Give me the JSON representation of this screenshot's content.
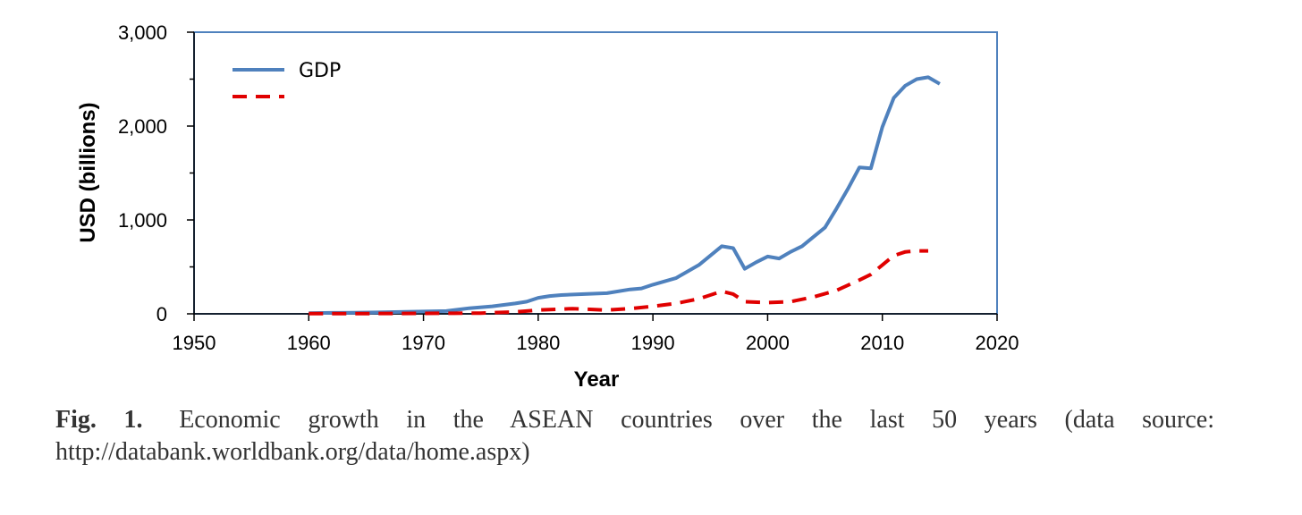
{
  "chart_data": {
    "type": "line",
    "title": "",
    "xlabel": "Year",
    "ylabel": "USD (billions)",
    "xlim": [
      1950,
      2020
    ],
    "ylim": [
      0,
      3000
    ],
    "x_ticks": [
      1950,
      1960,
      1970,
      1980,
      1990,
      2000,
      2010,
      2020
    ],
    "y_ticks": [
      0,
      1000,
      2000,
      3000
    ],
    "x_tick_labels": [
      "1950",
      "1960",
      "1970",
      "1980",
      "1990",
      "2000",
      "2010",
      "2020"
    ],
    "y_tick_labels": [
      "0",
      "1,000",
      "2,000",
      "3,000"
    ],
    "legend_position": "top-left",
    "grid": false,
    "series": [
      {
        "name": "GDP",
        "color": "#4f81bd",
        "style": "solid",
        "x": [
          1960,
          1962,
          1964,
          1966,
          1968,
          1970,
          1972,
          1974,
          1976,
          1978,
          1979,
          1980,
          1981,
          1982,
          1984,
          1986,
          1988,
          1989,
          1990,
          1992,
          1994,
          1996,
          1997,
          1998,
          1999,
          2000,
          2001,
          2002,
          2003,
          2004,
          2005,
          2006,
          2007,
          2008,
          2009,
          2010,
          2011,
          2012,
          2013,
          2014,
          2015
        ],
        "values": [
          8,
          10,
          12,
          15,
          20,
          25,
          30,
          60,
          80,
          110,
          130,
          170,
          190,
          200,
          210,
          220,
          260,
          270,
          310,
          380,
          520,
          720,
          700,
          480,
          550,
          610,
          590,
          660,
          720,
          820,
          920,
          1120,
          1330,
          1560,
          1550,
          1990,
          2300,
          2430,
          2500,
          2520,
          2450
        ]
      },
      {
        "name": "",
        "color": "#e00000",
        "style": "dashed",
        "x": [
          1960,
          1965,
          1970,
          1975,
          1978,
          1980,
          1983,
          1986,
          1988,
          1990,
          1992,
          1994,
          1996,
          1997,
          1998,
          2000,
          2002,
          2004,
          2006,
          2008,
          2009,
          2010,
          2011,
          2012,
          2013,
          2014
        ],
        "values": [
          2,
          3,
          5,
          8,
          20,
          40,
          55,
          40,
          55,
          80,
          110,
          160,
          240,
          210,
          130,
          120,
          130,
          180,
          250,
          360,
          420,
          520,
          620,
          660,
          670,
          670
        ]
      }
    ]
  },
  "caption": {
    "label": "Fig. 1.",
    "text": "Economic growth in the ASEAN countries over the last 50 years (data source: http://databank.worldbank.org/data/home.aspx)"
  }
}
